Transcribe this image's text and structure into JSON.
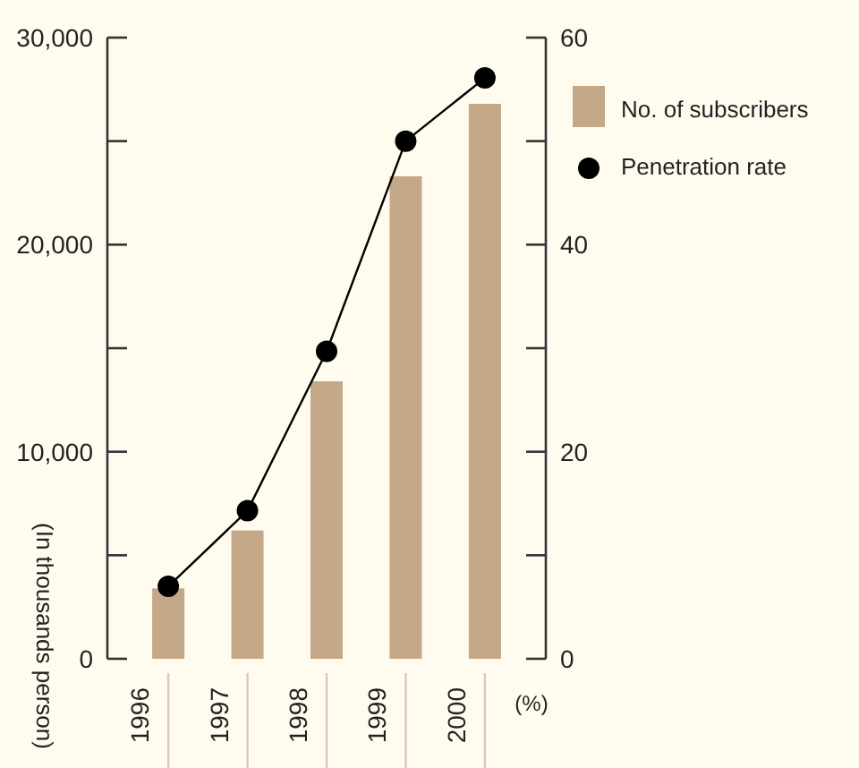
{
  "chart_data": {
    "type": "bar",
    "categories": [
      "1996",
      "1997",
      "1998",
      "1999",
      "2000"
    ],
    "series": [
      {
        "name": "No. of subscribers",
        "color": "#c5a888",
        "values": [
          3400,
          6200,
          13400,
          23300,
          26800
        ]
      },
      {
        "name": "Penetration rate",
        "type": "line",
        "axis": "y2",
        "color": "#000000",
        "values": [
          7,
          14.3,
          29.7,
          50,
          56.1
        ]
      }
    ],
    "ylabel": "(In thousands person)",
    "y2label": "(%)",
    "ylim": [
      0,
      30000
    ],
    "yticks": [
      0,
      {
        "value": 5000,
        "label": null
      },
      {
        "value": 10000,
        "label": "10,000"
      },
      {
        "value": 15000,
        "label": null
      },
      {
        "value": 20000,
        "label": "20,000"
      },
      {
        "value": 25000,
        "label": null
      },
      {
        "value": 30000,
        "label": "30,000"
      }
    ],
    "y2lim": [
      0,
      60
    ],
    "y2ticks": [
      0,
      {
        "value": 10,
        "label": null
      },
      20,
      {
        "value": 30,
        "label": null
      },
      40,
      {
        "value": 50,
        "label": null
      },
      60
    ],
    "marker": "circle",
    "legend": "top right"
  }
}
